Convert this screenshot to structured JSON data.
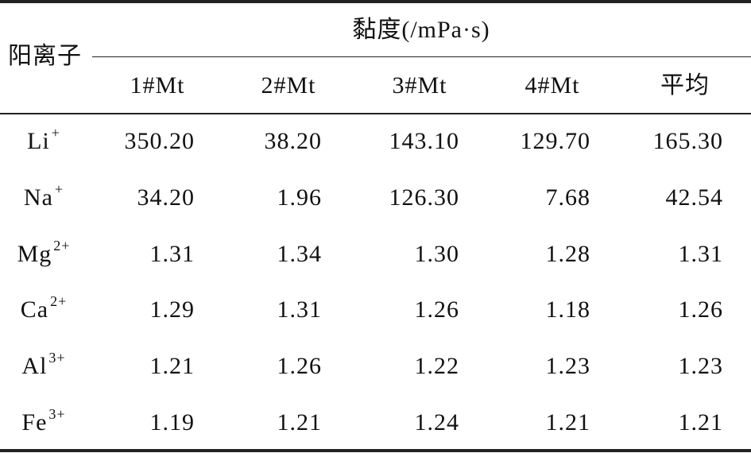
{
  "table": {
    "row_header": "阳离子",
    "group_header": "黏度(/mPa·s)",
    "columns": [
      "1#Mt",
      "2#Mt",
      "3#Mt",
      "4#Mt",
      "平均"
    ],
    "rows": [
      {
        "ion": "Li",
        "charge": "+",
        "values": [
          "350.20",
          "38.20",
          "143.10",
          "129.70",
          "165.30"
        ]
      },
      {
        "ion": "Na",
        "charge": "+",
        "values": [
          "34.20",
          "1.96",
          "126.30",
          "7.68",
          "42.54"
        ]
      },
      {
        "ion": "Mg",
        "charge": "2+",
        "values": [
          "1.31",
          "1.34",
          "1.30",
          "1.28",
          "1.31"
        ]
      },
      {
        "ion": "Ca",
        "charge": "2+",
        "values": [
          "1.29",
          "1.31",
          "1.26",
          "1.18",
          "1.26"
        ]
      },
      {
        "ion": "Al",
        "charge": "3+",
        "values": [
          "1.21",
          "1.26",
          "1.22",
          "1.23",
          "1.23"
        ]
      },
      {
        "ion": "Fe",
        "charge": "3+",
        "values": [
          "1.19",
          "1.21",
          "1.24",
          "1.21",
          "1.21"
        ]
      }
    ]
  }
}
